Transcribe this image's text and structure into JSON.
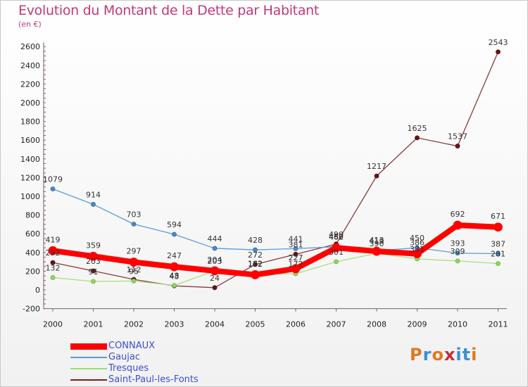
{
  "header": {
    "title": "Evolution du Montant de la Dette par Habitant",
    "subtitle": "(en €)"
  },
  "logo": {
    "text": "Proxiti",
    "colors": [
      "#e07820",
      "#3a8fd0",
      "#e07820",
      "#c03030",
      "#3a8fd0",
      "#3a8fd0",
      "#e07820"
    ]
  },
  "chart_data": {
    "type": "line",
    "title": "Evolution du Montant de la Dette par Habitant",
    "ylabel": "(en €)",
    "xlabel": "",
    "x": [
      "2000",
      "2001",
      "2002",
      "2003",
      "2004",
      "2005",
      "2006",
      "2007",
      "2008",
      "2009",
      "2010",
      "2011"
    ],
    "ylim": [
      -200,
      2600
    ],
    "yticks": [
      -200,
      0,
      200,
      400,
      600,
      800,
      1000,
      1200,
      1400,
      1600,
      1800,
      2000,
      2200,
      2400,
      2600
    ],
    "grid": false,
    "legend_position": "bottom-left",
    "series": [
      {
        "name": "CONNAUX",
        "color": "#ff0000",
        "values": [
          419,
          359,
          297,
          247,
          204,
          162,
          227,
          450,
          413,
          386,
          692,
          671
        ],
        "labels": [
          "419",
          "359",
          "297",
          "247",
          "204",
          "162",
          "227",
          "450",
          "413",
          "386",
          "692",
          "671"
        ]
      },
      {
        "name": "Gaujac",
        "color": "#5b9bd5",
        "values": [
          1079,
          914,
          703,
          594,
          444,
          428,
          441,
          462,
          419,
          450,
          393,
          387
        ],
        "labels": [
          "1079",
          "914",
          "703",
          "594",
          "444",
          "428",
          "441",
          "462",
          "419",
          "450",
          "393",
          "387"
        ]
      },
      {
        "name": "Tresques",
        "color": "#99dd77",
        "values": [
          132,
          91,
          95,
          48,
          203,
          172,
          172,
          301,
          390,
          331,
          309,
          281
        ],
        "labels": [
          "132",
          "91",
          "95",
          "48",
          "203",
          "172",
          "172",
          "301",
          "390",
          "331",
          "309",
          "281"
        ]
      },
      {
        "name": "Saint-Paul-les-Fonts",
        "color": "#7b1f1f",
        "values": [
          292,
          203,
          112,
          43,
          24,
          272,
          381,
          490,
          1217,
          1625,
          1537,
          2543
        ],
        "labels": [
          "292",
          "203",
          "112",
          "43",
          "24",
          "272",
          "381",
          "490",
          "1217",
          "1625",
          "1537",
          "2543"
        ]
      }
    ]
  }
}
